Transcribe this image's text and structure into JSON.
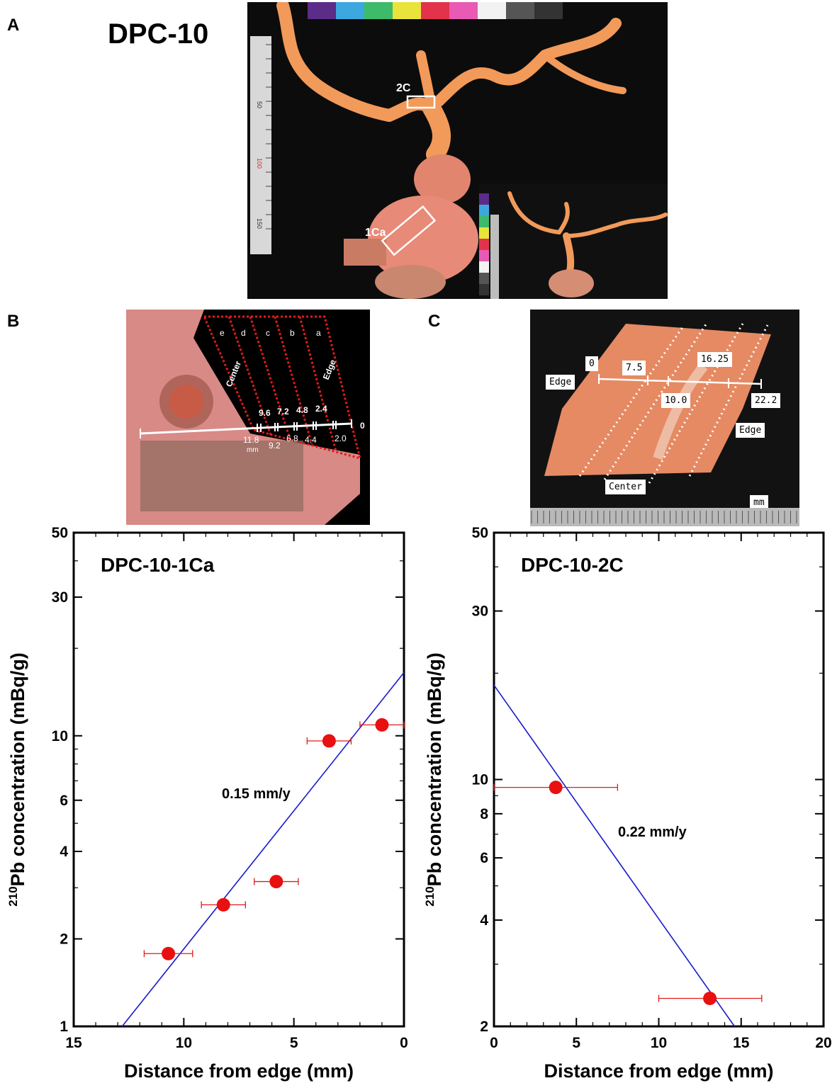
{
  "figure": {
    "panels": {
      "a": "A",
      "b": "B",
      "c": "C"
    },
    "specimen_title": "DPC-10"
  },
  "photo_a": {
    "box_labels": {
      "upper": "2C",
      "lower": "1Ca"
    },
    "ruler_numbers": [
      "50",
      "100",
      "150"
    ],
    "color_chart": [
      "#5b2c88",
      "#3da8e0",
      "#3dba6a",
      "#e8e43c",
      "#e2334a",
      "#e85ab4",
      "#f2f2f2",
      "#555555",
      "#333333"
    ]
  },
  "photo_b": {
    "zones": [
      "e",
      "d",
      "c",
      "b",
      "a"
    ],
    "center_label": "Center",
    "edge_label": "Edge",
    "upper_ticks": [
      "9.6",
      "7.2",
      "4.8",
      "2.4"
    ],
    "lower_ticks": [
      "11.8",
      "9.2",
      "6.8",
      "4.4",
      "2.0"
    ],
    "zero": "0",
    "unit": "mm"
  },
  "photo_c": {
    "labels": {
      "edge_left": "Edge",
      "zero": "0",
      "v75": "7.5",
      "v1625": "16.25",
      "v100": "10.0",
      "v222": "22.2",
      "edge_right": "Edge",
      "center": "Center",
      "unit": "mm"
    }
  },
  "chart_data": [
    {
      "type": "scatter",
      "title": "DPC-10-1Ca",
      "xlabel": "Distance from edge (mm)",
      "ylabel_sup": "210",
      "ylabel_main": "Pb concentration (mBq/g)",
      "xlim": [
        15,
        0
      ],
      "ylim": [
        1,
        50
      ],
      "yscale": "log",
      "xticks": [
        15,
        10,
        5,
        0
      ],
      "yticks": [
        1,
        2,
        4,
        6,
        10,
        30,
        50
      ],
      "annotation": "0.15 mm/y",
      "points": [
        {
          "x": 10.7,
          "y": 1.78,
          "xerr_lo": 9.6,
          "xerr_hi": 11.8,
          "yerr": 0.07
        },
        {
          "x": 8.2,
          "y": 2.62,
          "xerr_lo": 7.2,
          "xerr_hi": 9.2,
          "yerr": 0.09
        },
        {
          "x": 5.8,
          "y": 3.15,
          "xerr_lo": 4.8,
          "xerr_hi": 6.8,
          "yerr": 0.12
        },
        {
          "x": 3.4,
          "y": 9.6,
          "xerr_lo": 2.4,
          "xerr_hi": 4.4,
          "yerr": 0.25
        },
        {
          "x": 1.0,
          "y": 10.9,
          "xerr_lo": 0,
          "xerr_hi": 2.0,
          "yerr": 0.3
        }
      ],
      "fit": {
        "x1": 12.8,
        "y1": 1.0,
        "x2": 0,
        "y2": 16.5
      }
    },
    {
      "type": "scatter",
      "title": "DPC-10-2C",
      "xlabel": "Distance from edge (mm)",
      "ylabel_sup": "210",
      "ylabel_main": "Pb concentration (mBq/g)",
      "xlim": [
        0,
        20
      ],
      "ylim": [
        2,
        50
      ],
      "yscale": "log",
      "xticks": [
        0,
        5,
        10,
        15,
        20
      ],
      "yticks": [
        2,
        4,
        6,
        8,
        10,
        30,
        50
      ],
      "annotation": "0.22 mm/y",
      "points": [
        {
          "x": 3.75,
          "y": 9.5,
          "xerr_lo": 0,
          "xerr_hi": 7.5,
          "yerr": 0.3
        },
        {
          "x": 13.1,
          "y": 2.4,
          "xerr_lo": 10.0,
          "xerr_hi": 16.25,
          "yerr": 0.08
        }
      ],
      "fit": {
        "x1": 0,
        "y1": 18.5,
        "x2": 14.6,
        "y2": 2.0
      }
    }
  ]
}
